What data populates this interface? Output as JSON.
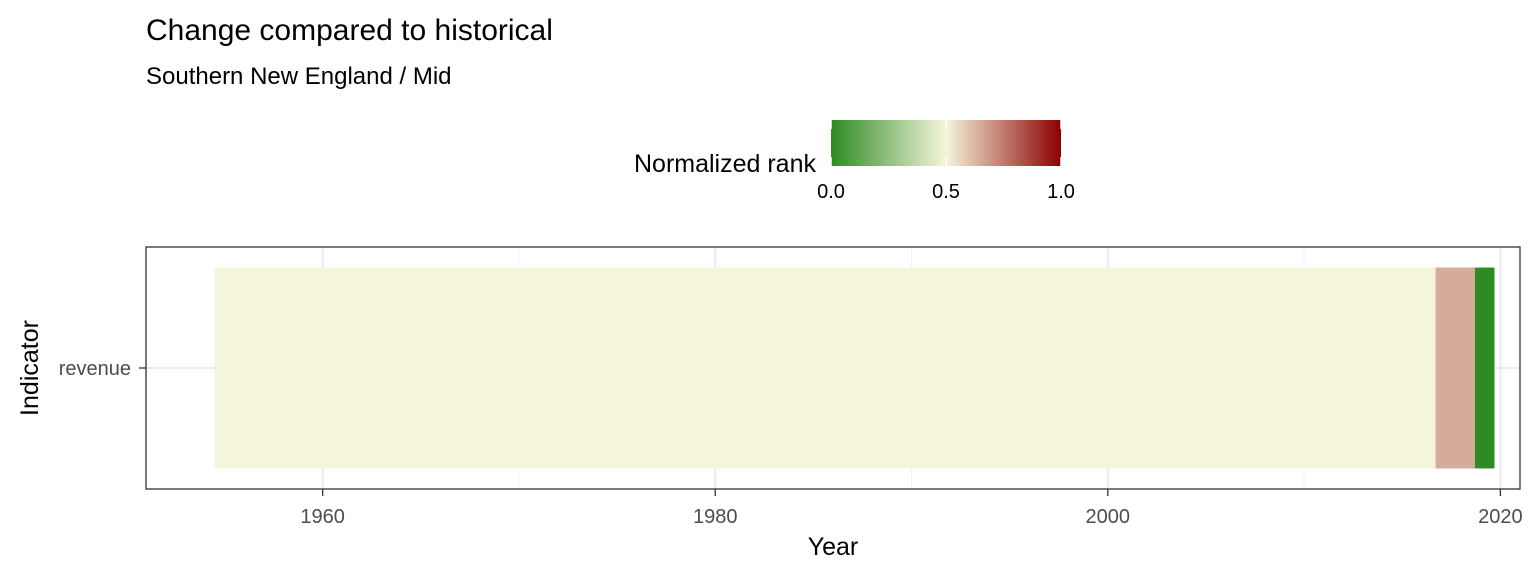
{
  "chart_data": {
    "type": "heatmap",
    "title": "Change compared to historical",
    "subtitle": "Southern New England / Mid",
    "xlabel": "Year",
    "ylabel": "Indicator",
    "xlim": [
      1951,
      2021
    ],
    "x_ticks": [
      1960,
      1980,
      2000,
      2020
    ],
    "x_tick_labels": [
      "1960",
      "1980",
      "2000",
      "2020"
    ],
    "categories": [
      "revenue"
    ],
    "grid": true,
    "legend": {
      "title": "Normalized rank",
      "position": "top",
      "ticks": [
        0.0,
        0.5,
        1.0
      ],
      "tick_labels": [
        "0.0",
        "0.5",
        "1.0"
      ],
      "colors": [
        "#2E8B22",
        "#F5F5DC",
        "#8B0000"
      ]
    },
    "series": [
      {
        "category": "revenue",
        "segments": [
          {
            "x_start": 1954.5,
            "x_end": 2016.7,
            "normalized_rank": 0.5
          },
          {
            "x_start": 2016.7,
            "x_end": 2018.7,
            "normalized_rank": 0.65
          },
          {
            "x_start": 2018.7,
            "x_end": 2019.7,
            "normalized_rank": 0.0
          }
        ]
      }
    ]
  }
}
